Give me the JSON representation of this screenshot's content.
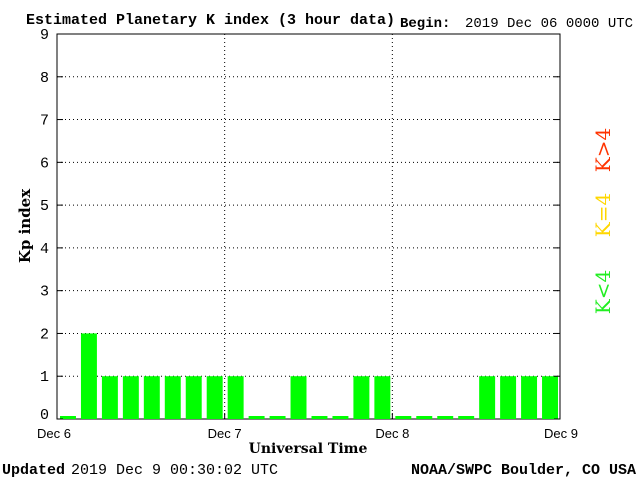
{
  "header": {
    "title": "Estimated Planetary K index (3 hour data)",
    "begin_label": "Begin:",
    "begin_value": "2019 Dec 06 0000 UTC"
  },
  "footer": {
    "updated_label": "Updated",
    "updated_value": "2019 Dec  9 00:30:02 UTC",
    "credit": "NOAA/SWPC Boulder, CO USA"
  },
  "legend": [
    {
      "label": "K>4",
      "color": "#ff3300"
    },
    {
      "label": "K=4",
      "color": "#ffd700"
    },
    {
      "label": "K<4",
      "color": "#22ee22"
    }
  ],
  "colors": {
    "bar": "#00ff00",
    "axis": "#000000",
    "grid": "#000000"
  },
  "chart_data": {
    "type": "bar",
    "title": "Estimated Planetary K index (3 hour data)",
    "xlabel": "Universal Time",
    "ylabel": "Kp index",
    "ylim": [
      0,
      9
    ],
    "yticks": [
      "0",
      "1",
      "2",
      "3",
      "4",
      "5",
      "6",
      "7",
      "8",
      "9"
    ],
    "xticks": [
      "Dec 6",
      "Dec 7",
      "Dec 8",
      "Dec 9"
    ],
    "grid": true,
    "bar_interval_hours": 3,
    "start": "2019-12-06T00:00Z",
    "values": [
      0,
      2,
      1,
      1,
      1,
      1,
      1,
      1,
      1,
      0,
      0,
      1,
      0,
      0,
      1,
      1,
      0,
      0,
      0,
      0,
      1,
      1,
      1,
      1
    ]
  }
}
